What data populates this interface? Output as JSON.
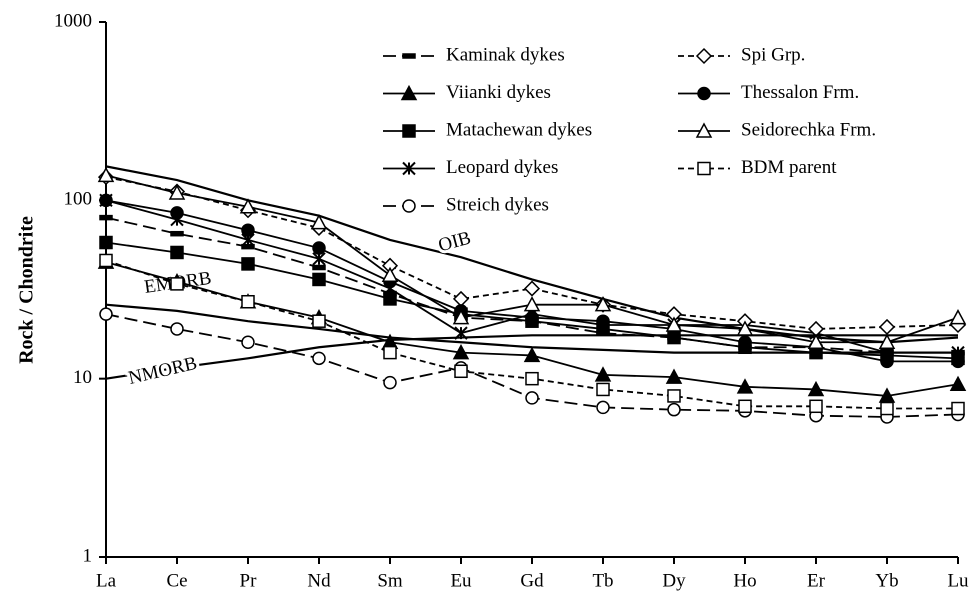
{
  "chart_data": {
    "type": "line",
    "y_label": "Rock / Chondrite",
    "log_y": true,
    "categories": [
      "La",
      "Ce",
      "Pr",
      "Nd",
      "Sm",
      "Eu",
      "Gd",
      "Tb",
      "Dy",
      "Ho",
      "Er",
      "Yb",
      "Lu"
    ],
    "ylim": [
      1,
      1000
    ],
    "yticks": [
      1,
      10,
      100,
      1000
    ],
    "series": [
      {
        "name": "Kaminak dykes",
        "color": "#000000",
        "marker": "dash",
        "dash": "long",
        "values": [
          80,
          65,
          55,
          42,
          30,
          22,
          21,
          18,
          17,
          15,
          15,
          14,
          14
        ]
      },
      {
        "name": "Viianki dykes",
        "color": "#000000",
        "marker": "triangle",
        "dash": "solid",
        "values": [
          45,
          35,
          27,
          22,
          16,
          14,
          13.5,
          10.5,
          10.2,
          9,
          8.7,
          8,
          9.3
        ]
      },
      {
        "name": "Matachewan dykes",
        "color": "#000000",
        "marker": "square",
        "dash": "solid",
        "values": [
          58,
          51,
          44,
          36,
          28,
          23,
          21,
          19,
          17,
          15,
          14,
          13.5,
          13
        ]
      },
      {
        "name": "Leopard dykes",
        "color": "#000000",
        "marker": "star",
        "dash": "solid",
        "values": [
          100,
          78,
          60,
          47,
          32,
          18,
          23,
          20,
          20,
          20,
          18,
          14,
          14
        ]
      },
      {
        "name": "Streich dykes",
        "color": "#000000",
        "marker": "circle-open",
        "dash": "long",
        "values": [
          23,
          19,
          16,
          13,
          9.5,
          11.5,
          7.8,
          6.9,
          6.7,
          6.6,
          6.2,
          6.1,
          6.3
        ]
      },
      {
        "name": "Spi Grp.",
        "color": "#000000",
        "marker": "diamond-open",
        "dash": "short",
        "values": [
          135,
          112,
          88,
          70,
          43,
          28,
          32,
          26,
          23,
          21,
          19,
          19.5,
          20
        ]
      },
      {
        "name": "Thessalon Frm.",
        "color": "#000000",
        "marker": "circle",
        "dash": "solid",
        "values": [
          100,
          85,
          68,
          54,
          35,
          24,
          22,
          21,
          19,
          16,
          15,
          12.5,
          12.5
        ]
      },
      {
        "name": "Seidorechka Frm.",
        "color": "#000000",
        "marker": "triangle-open",
        "dash": "solid",
        "values": [
          138,
          110,
          92,
          75,
          38,
          22,
          26,
          26,
          20,
          19,
          16,
          16,
          22
        ]
      },
      {
        "name": "BDM parent",
        "color": "#000000",
        "marker": "square-open",
        "dash": "short",
        "values": [
          46,
          34,
          27,
          21,
          14,
          11,
          10,
          8.7,
          8,
          7,
          7,
          6.8,
          6.8
        ]
      }
    ],
    "reference_lines": [
      {
        "name": "OIB",
        "color": "#000000",
        "values": [
          155,
          130,
          100,
          82,
          60,
          48,
          36,
          28,
          22,
          19,
          17,
          16,
          17
        ]
      },
      {
        "name": "EMORB",
        "color": "#000000",
        "values": [
          26,
          24,
          21,
          19,
          17,
          16,
          15,
          14.5,
          14,
          14,
          14,
          14,
          14
        ]
      },
      {
        "name": "NMORB",
        "color": "#000000",
        "values": [
          10,
          11.5,
          13,
          15,
          16.5,
          17,
          17.5,
          17.5,
          17.5,
          17.5,
          17.5,
          17.5,
          17.5
        ]
      }
    ]
  }
}
